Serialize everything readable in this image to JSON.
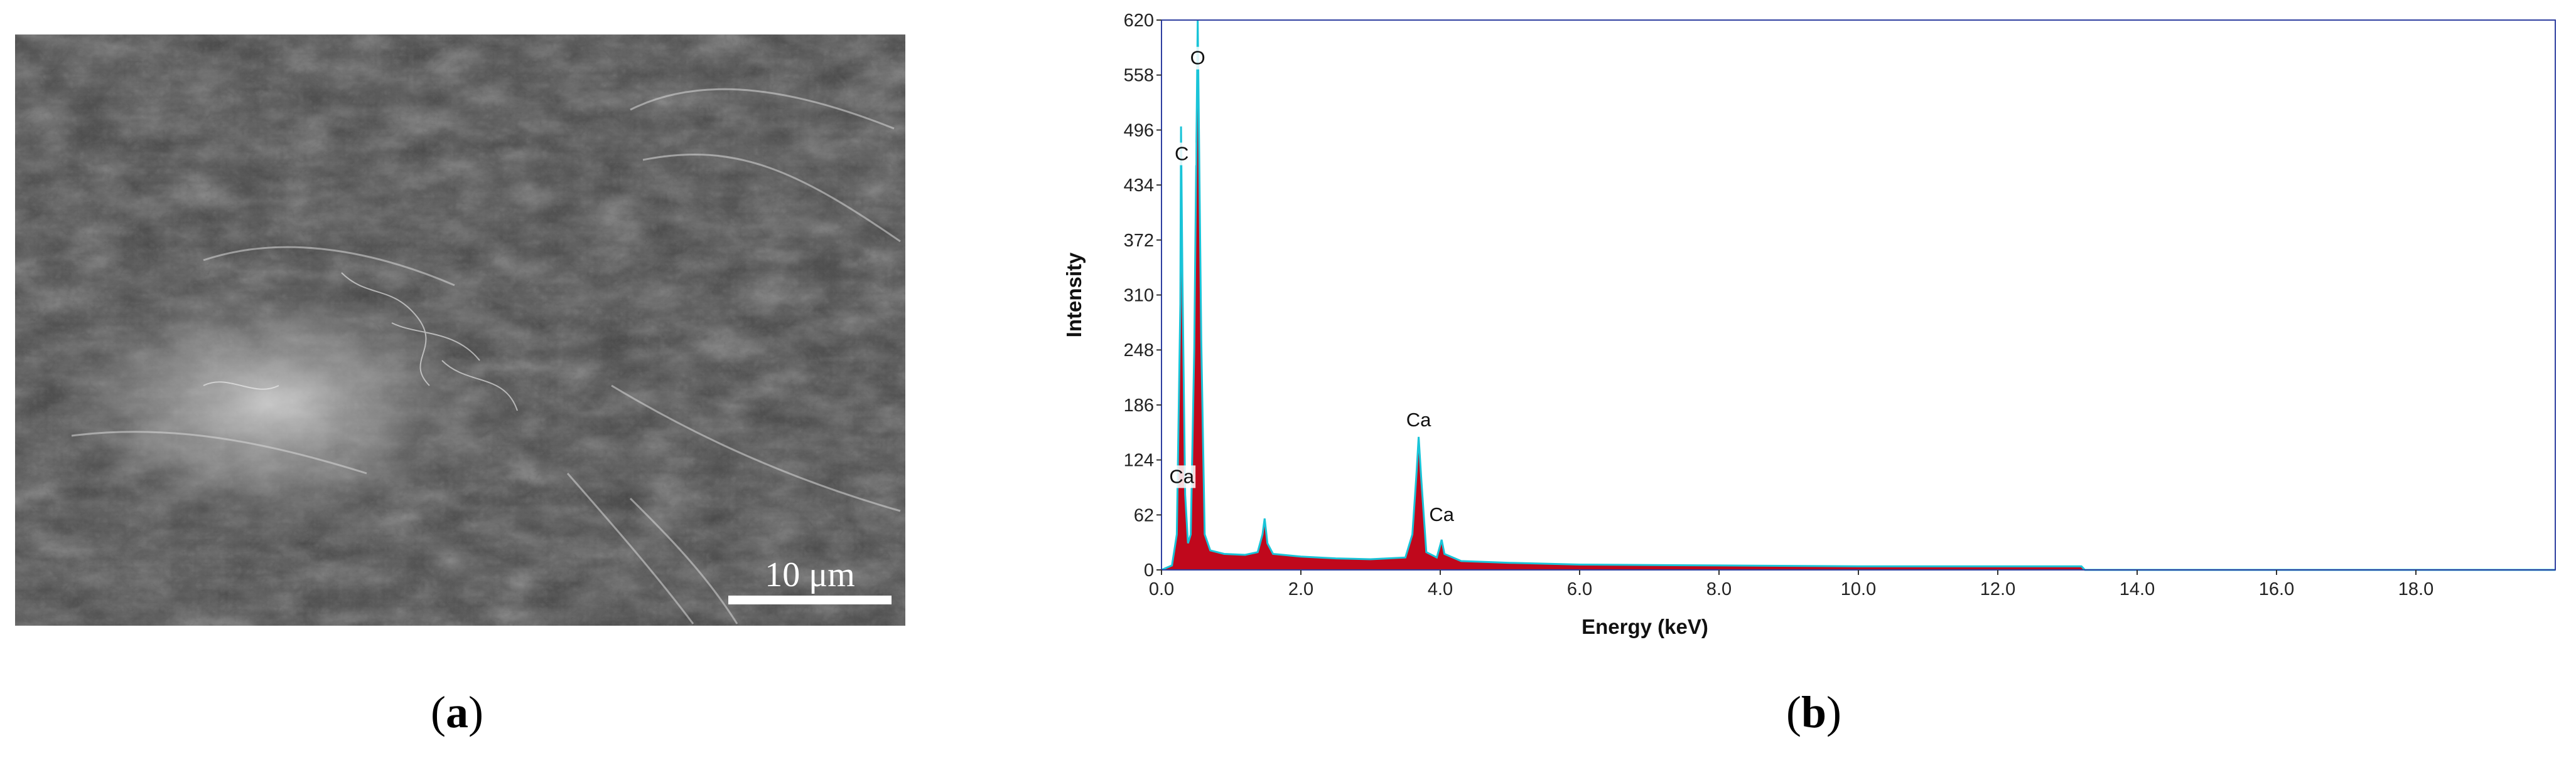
{
  "panel_a": {
    "scale_bar_label": "10 μm",
    "caption_open": "(",
    "caption_letter": "a",
    "caption_close": ")"
  },
  "panel_b": {
    "caption_open": "(",
    "caption_letter": "b",
    "caption_close": ")"
  },
  "chart_data": {
    "type": "line",
    "title": "",
    "xlabel": "Energy (keV)",
    "ylabel": "Intensity",
    "xlim": [
      0,
      20
    ],
    "ylim": [
      0,
      620
    ],
    "xticks": [
      "0.0",
      "2.0",
      "4.0",
      "6.0",
      "8.0",
      "10.0",
      "12.0",
      "14.0",
      "16.0",
      "18.0"
    ],
    "xtick_values": [
      0,
      2,
      4,
      6,
      8,
      10,
      12,
      14,
      16,
      18
    ],
    "yticks": [
      "0",
      "62",
      "124",
      "186",
      "248",
      "310",
      "372",
      "434",
      "496",
      "558",
      "620"
    ],
    "ytick_values": [
      0,
      62,
      124,
      186,
      248,
      310,
      372,
      434,
      496,
      558,
      620
    ],
    "grid": false,
    "colors": {
      "spectrum_fill": "#c0081c",
      "spectrum_line": "#19c4d8",
      "frame": "#2f3fa0"
    },
    "series": [
      {
        "points": [
          [
            0.0,
            0
          ],
          [
            0.15,
            5
          ],
          [
            0.22,
            40
          ],
          [
            0.27,
            300
          ],
          [
            0.28,
            500
          ],
          [
            0.3,
            330
          ],
          [
            0.34,
            85
          ],
          [
            0.38,
            30
          ],
          [
            0.42,
            40
          ],
          [
            0.47,
            250
          ],
          [
            0.52,
            620
          ],
          [
            0.57,
            260
          ],
          [
            0.62,
            40
          ],
          [
            0.7,
            22
          ],
          [
            0.9,
            18
          ],
          [
            1.2,
            17
          ],
          [
            1.38,
            20
          ],
          [
            1.45,
            40
          ],
          [
            1.48,
            58
          ],
          [
            1.52,
            30
          ],
          [
            1.6,
            18
          ],
          [
            2.0,
            15
          ],
          [
            2.5,
            13
          ],
          [
            3.0,
            12
          ],
          [
            3.5,
            14
          ],
          [
            3.6,
            40
          ],
          [
            3.66,
            110
          ],
          [
            3.69,
            150
          ],
          [
            3.73,
            100
          ],
          [
            3.8,
            20
          ],
          [
            3.95,
            14
          ],
          [
            4.0,
            28
          ],
          [
            4.02,
            34
          ],
          [
            4.06,
            18
          ],
          [
            4.3,
            10
          ],
          [
            5.0,
            8
          ],
          [
            6.0,
            6
          ],
          [
            8.0,
            5
          ],
          [
            10.0,
            4
          ],
          [
            12.0,
            4
          ],
          [
            13.2,
            4
          ],
          [
            13.25,
            0
          ],
          [
            20.0,
            0
          ]
        ]
      }
    ],
    "annotations": [
      {
        "text": "O",
        "x": 0.52,
        "y": 570
      },
      {
        "text": "C",
        "x": 0.29,
        "y": 462
      },
      {
        "text": "Ca",
        "x": 0.29,
        "y": 98
      },
      {
        "text": "Ca",
        "x": 3.69,
        "y": 162
      },
      {
        "text": "Ca",
        "x": 4.02,
        "y": 55
      }
    ]
  }
}
